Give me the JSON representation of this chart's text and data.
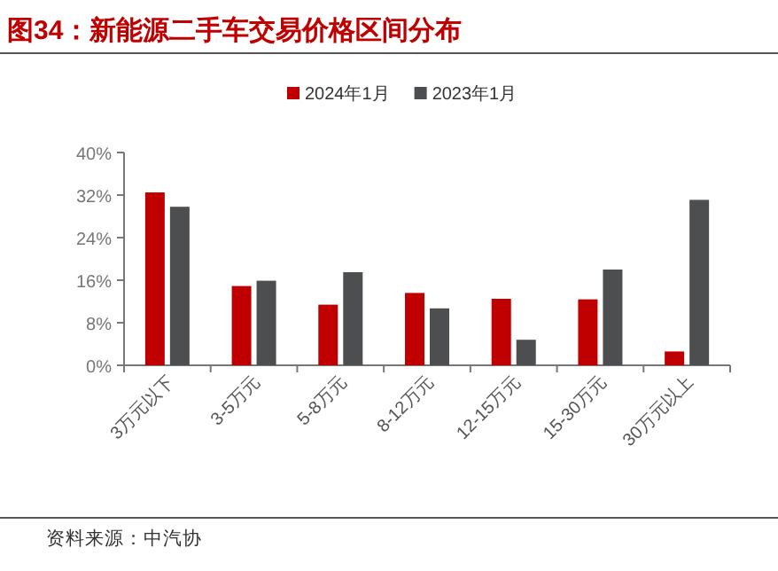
{
  "chart_data": {
    "type": "bar",
    "title": "图34：新能源二手车交易价格区间分布",
    "categories": [
      "3万元以下",
      "3-5万元",
      "5-8万元",
      "8-12万元",
      "12-15万元",
      "15-30万元",
      "30万元以上"
    ],
    "series": [
      {
        "name": "2024年1月",
        "color": "#c00000",
        "values": [
          32.5,
          14.9,
          11.4,
          13.6,
          12.5,
          12.4,
          2.6
        ]
      },
      {
        "name": "2023年1月",
        "color": "#4d4e50",
        "values": [
          29.8,
          15.9,
          17.5,
          10.7,
          4.8,
          18.0,
          31.1
        ]
      }
    ],
    "ylim": [
      0,
      40
    ],
    "yticks": [
      {
        "value": 0,
        "label": "0%"
      },
      {
        "value": 8,
        "label": "8%"
      },
      {
        "value": 16,
        "label": "16%"
      },
      {
        "value": 24,
        "label": "24%"
      },
      {
        "value": 32,
        "label": "32%"
      },
      {
        "value": 40,
        "label": "40%"
      }
    ],
    "grid": false,
    "legend": "top",
    "annotations": [
      "资料来源：中汽协"
    ]
  }
}
